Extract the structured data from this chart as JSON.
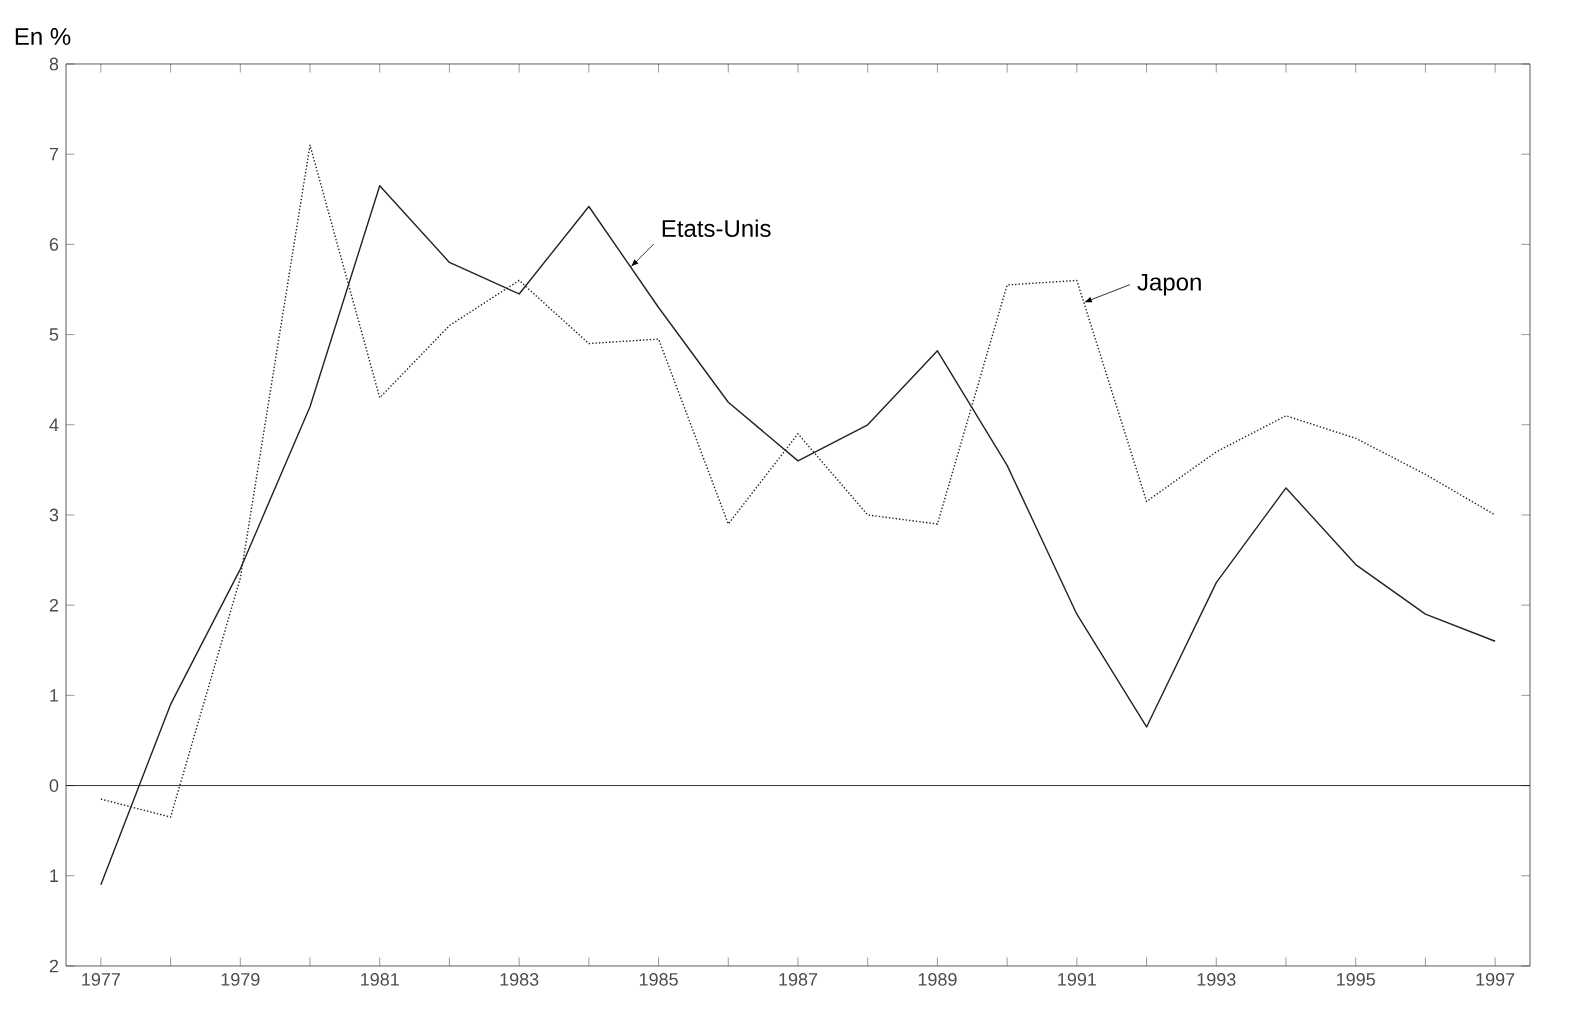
{
  "chart_data": {
    "type": "line",
    "ylabel": "En %",
    "x": [
      1977,
      1978,
      1979,
      1980,
      1981,
      1982,
      1983,
      1984,
      1985,
      1986,
      1987,
      1988,
      1989,
      1990,
      1991,
      1992,
      1993,
      1994,
      1995,
      1996,
      1997
    ],
    "series": [
      {
        "name": "Etats-Unis",
        "color": "#222222",
        "line_style": "solid",
        "values": [
          -1.1,
          0.9,
          2.4,
          4.2,
          6.65,
          5.8,
          5.45,
          6.42,
          5.3,
          4.25,
          3.6,
          4.0,
          4.82,
          3.55,
          1.9,
          0.65,
          2.25,
          3.3,
          2.45,
          1.9,
          1.6
        ]
      },
      {
        "name": "Japon",
        "color": "#222222",
        "line_style": "dotted",
        "values": [
          -0.15,
          -0.35,
          2.3,
          7.1,
          4.3,
          5.1,
          5.6,
          4.9,
          4.95,
          2.9,
          3.9,
          3.0,
          2.9,
          5.55,
          5.6,
          3.15,
          3.7,
          4.1,
          3.85,
          3.45,
          3.0
        ]
      }
    ],
    "xlim": [
      1976.5,
      1997.5
    ],
    "ylim": [
      -2,
      8
    ],
    "xticks": [
      1977,
      {
        "value": 1978,
        "label": null
      },
      1979,
      {
        "value": 1980,
        "label": null
      },
      1981,
      {
        "value": 1982,
        "label": null
      },
      1983,
      {
        "value": 1984,
        "label": null
      },
      1985,
      {
        "value": 1986,
        "label": null
      },
      1987,
      {
        "value": 1988,
        "label": null
      },
      1989,
      {
        "value": 1990,
        "label": null
      },
      1991,
      {
        "value": 1992,
        "label": null
      },
      1993,
      {
        "value": 1994,
        "label": null
      },
      1995,
      {
        "value": 1996,
        "label": null
      },
      1997
    ],
    "yticks": [
      {
        "value": -2,
        "label": "2"
      },
      {
        "value": -1,
        "label": "1"
      },
      0,
      1,
      2,
      3,
      4,
      5,
      6,
      7,
      8
    ],
    "ref_lines": [
      {
        "axis": "y",
        "value": 0
      }
    ],
    "grid": false,
    "legend": false,
    "marker": "none"
  }
}
